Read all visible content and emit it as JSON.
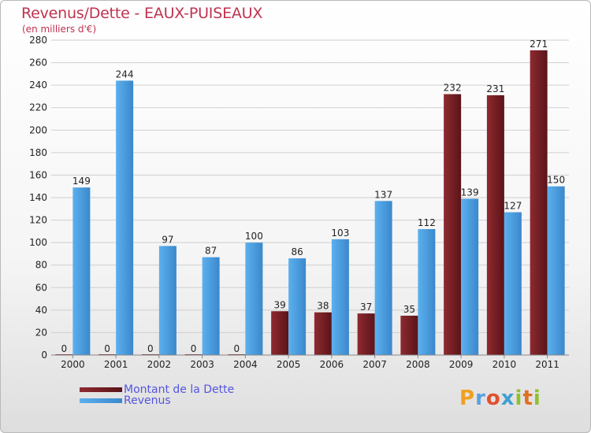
{
  "title": "Revenus/Dette - EAUX-PUISEAUX",
  "subtitle": "(en milliers d'€)",
  "logo": {
    "text": "Proxiti",
    "letters": [
      "P",
      "r",
      "o",
      "x",
      "i",
      "t",
      "i"
    ],
    "colors": [
      "#f0a020",
      "#5aa0e0",
      "#e05030",
      "#40a0d0",
      "#90c030",
      "#e07020",
      "#90c030"
    ]
  },
  "colors": {
    "dette": "#7a1f25",
    "revenus": "#4ea0e0",
    "axis_text": "#222222",
    "grid": "#cfcfcf"
  },
  "chart_data": {
    "type": "bar",
    "categories": [
      "2000",
      "2001",
      "2002",
      "2003",
      "2004",
      "2005",
      "2006",
      "2007",
      "2008",
      "2009",
      "2010",
      "2011"
    ],
    "series": [
      {
        "name": "Montant de la Dette",
        "values": [
          0,
          0,
          0,
          0,
          0,
          39,
          38,
          37,
          35,
          232,
          231,
          271
        ]
      },
      {
        "name": "Revenus",
        "values": [
          149,
          244,
          97,
          87,
          100,
          86,
          103,
          137,
          112,
          139,
          127,
          150
        ]
      }
    ],
    "ylim": [
      0,
      280
    ],
    "yticks": [
      0,
      20,
      40,
      60,
      80,
      100,
      120,
      140,
      160,
      180,
      200,
      220,
      240,
      260,
      280
    ],
    "grid": true,
    "legend_position": "bottom-left"
  }
}
